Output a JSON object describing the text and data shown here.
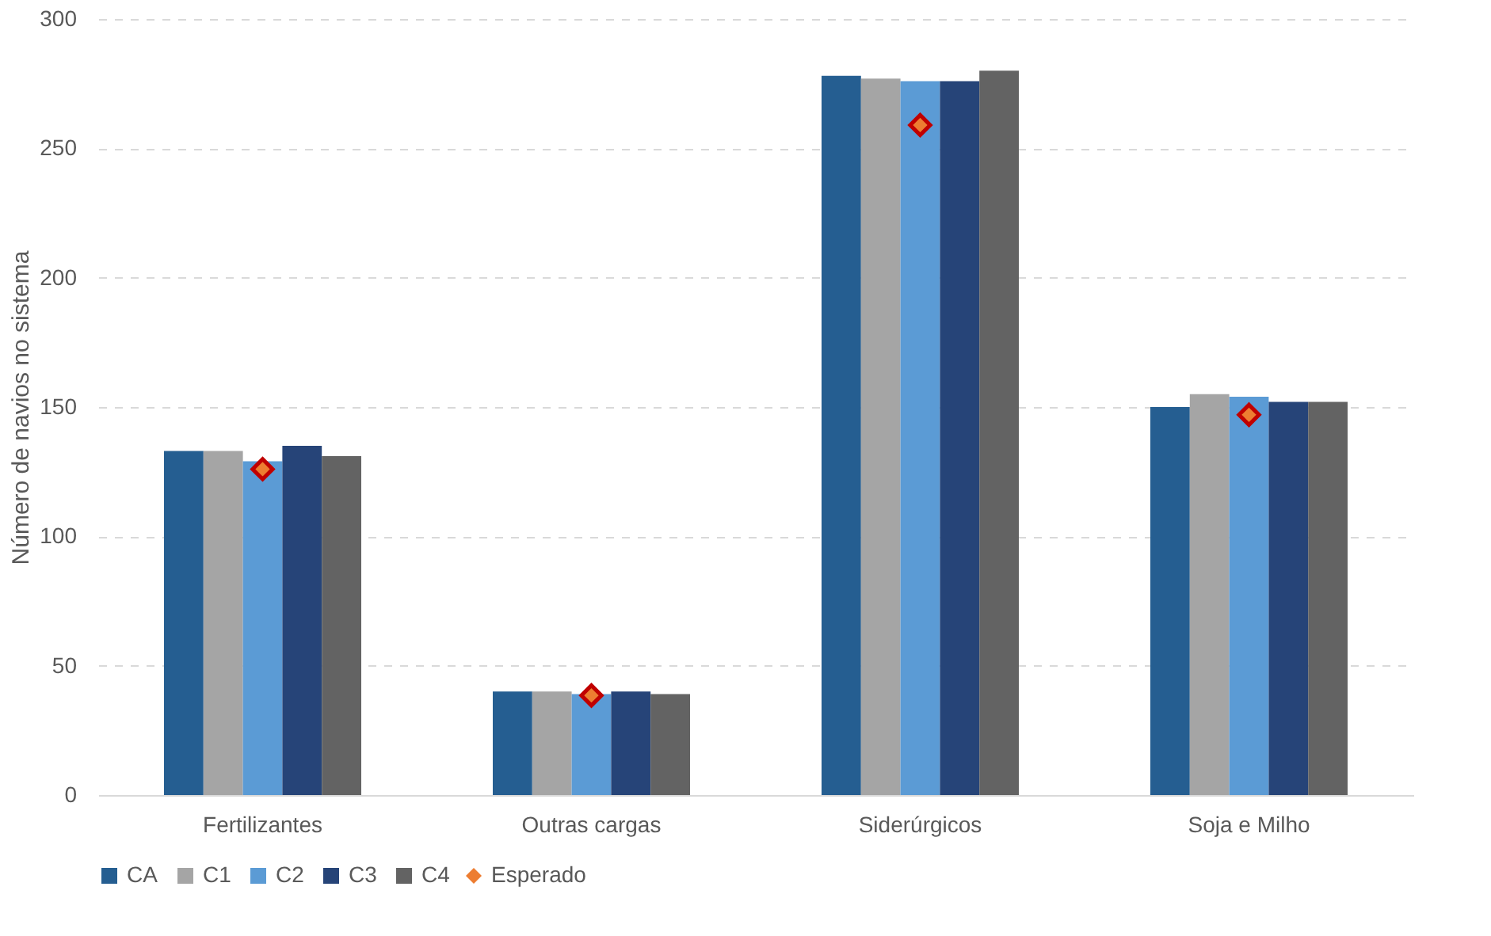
{
  "chart_data": {
    "type": "bar",
    "ylabel": "Número de navios no sistema",
    "categories": [
      "Fertilizantes",
      "Outras cargas",
      "Siderúrgicos",
      "Soja e Milho"
    ],
    "series": [
      {
        "name": "CA",
        "color": "#255e91",
        "values": [
          133,
          40,
          278,
          150
        ]
      },
      {
        "name": "C1",
        "color": "#a5a5a5",
        "values": [
          133,
          40,
          277,
          155
        ]
      },
      {
        "name": "C2",
        "color": "#5b9bd5",
        "values": [
          129,
          39,
          276,
          154
        ]
      },
      {
        "name": "C3",
        "color": "#264478",
        "values": [
          135,
          40,
          276,
          152
        ]
      },
      {
        "name": "C4",
        "color": "#636363",
        "values": [
          131,
          39,
          280,
          152
        ]
      },
      {
        "name": "Esperado",
        "type": "scatter",
        "marker": "diamond",
        "color": "#ed7d31",
        "values": [
          126,
          38.5,
          259,
          147
        ]
      }
    ],
    "ylim": [
      0,
      300
    ],
    "yticks": [
      0,
      50,
      100,
      150,
      200,
      250,
      300
    ],
    "grid": "y",
    "legend": "bottom"
  }
}
